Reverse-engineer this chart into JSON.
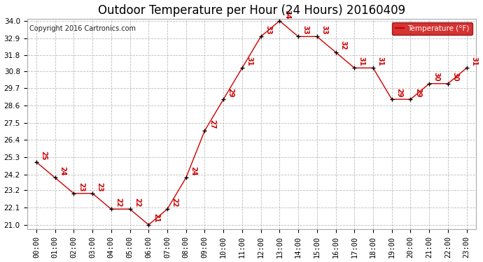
{
  "title": "Outdoor Temperature per Hour (24 Hours) 20160409",
  "copyright": "Copyright 2016 Cartronics.com",
  "legend_label": "Temperature (°F)",
  "hours": [
    "00:00",
    "01:00",
    "02:00",
    "03:00",
    "04:00",
    "05:00",
    "06:00",
    "07:00",
    "08:00",
    "09:00",
    "10:00",
    "11:00",
    "12:00",
    "13:00",
    "14:00",
    "15:00",
    "16:00",
    "17:00",
    "18:00",
    "19:00",
    "20:00",
    "21:00",
    "22:00",
    "23:00"
  ],
  "temps": [
    25,
    24,
    23,
    23,
    22,
    22,
    21,
    22,
    24,
    27,
    29,
    31,
    33,
    34,
    33,
    33,
    32,
    31,
    31,
    29,
    29,
    30,
    30,
    31
  ],
  "line_color": "#cc0000",
  "marker_color": "#000000",
  "grid_color": "#bbbbbb",
  "bg_color": "#ffffff",
  "legend_bg": "#cc0000",
  "legend_text_color": "#ffffff",
  "ylim_min": 21.0,
  "ylim_max": 34.0,
  "yticks": [
    21.0,
    22.1,
    23.2,
    24.2,
    25.3,
    26.4,
    27.5,
    28.6,
    29.7,
    30.8,
    31.8,
    32.9,
    34.0
  ],
  "title_fontsize": 12,
  "tick_fontsize": 7.5,
  "annotation_fontsize": 7,
  "copyright_fontsize": 7
}
